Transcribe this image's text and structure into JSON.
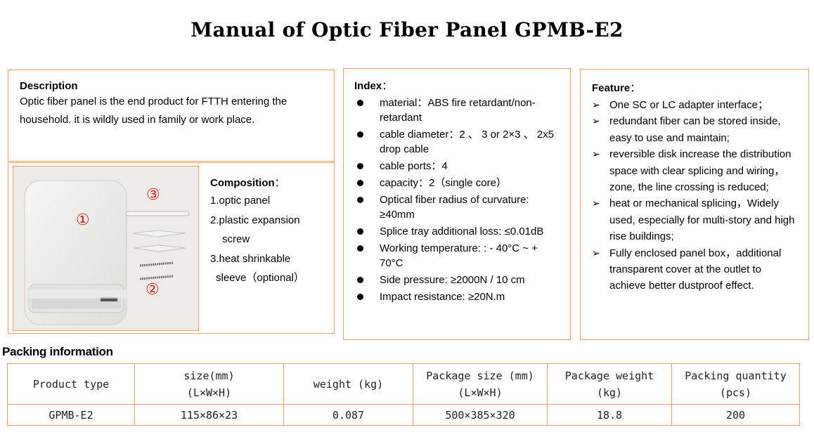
{
  "title": "Manual of Optic Fiber Panel GPMB-E2",
  "description": {
    "heading": "Description",
    "text": "Optic fiber panel is the end product for FTTH entering the household. it is wildly used in family or work place."
  },
  "composition": {
    "heading": "Composition",
    "colon": "：",
    "items": [
      "1.optic panel",
      "2.plastic expansion",
      "screw",
      "3.heat shrinkable",
      "sleeve（optional）"
    ],
    "markers": [
      "①",
      "②",
      "③"
    ]
  },
  "index": {
    "heading": "Index",
    "colon": "：",
    "items": [
      "material：ABS fire retardant/non-retardant",
      "cable diameter：2 、 3 or 2×3 、 2x5 drop cable",
      "cable ports：4",
      "capacity：2（single core）",
      "Optical fiber radius of curvature: ≥40mm",
      "Splice tray additional loss: ≤0.01dB",
      "Working temperature: : - 40°C ~ + 70°C",
      "Side pressure: ≥2000N / 10 cm",
      "Impact resistance: ≥20N.m"
    ]
  },
  "feature": {
    "heading": "Feature",
    "colon": "：",
    "items": [
      "One SC or LC adapter interface；",
      "redundant fiber can be stored inside, easy to use and maintain;",
      "reversible disk increase the distribution space with clear splicing and wiring，zone, the line crossing is reduced;",
      "heat or mechanical splicing，Widely used, especially for multi-story and high rise buildings;",
      "Fully enclosed panel box，additional transparent cover at the outlet to achieve better dustproof effect."
    ]
  },
  "packing": {
    "heading": "Packing information",
    "headers": [
      [
        "Product type"
      ],
      [
        "size(mm)",
        "(L×W×H)"
      ],
      [
        "weight (kg)"
      ],
      [
        "Package size (mm)",
        "(L×W×H)"
      ],
      [
        "Package weight",
        "(kg)"
      ],
      [
        "Packing quantity",
        "(pcs)"
      ]
    ],
    "row": [
      "GPMB-E2",
      "115×86×23",
      "0.087",
      "500×385×320",
      "18.8",
      "200"
    ]
  },
  "colors": {
    "border": "#f0a060",
    "marker": "#e02020"
  }
}
